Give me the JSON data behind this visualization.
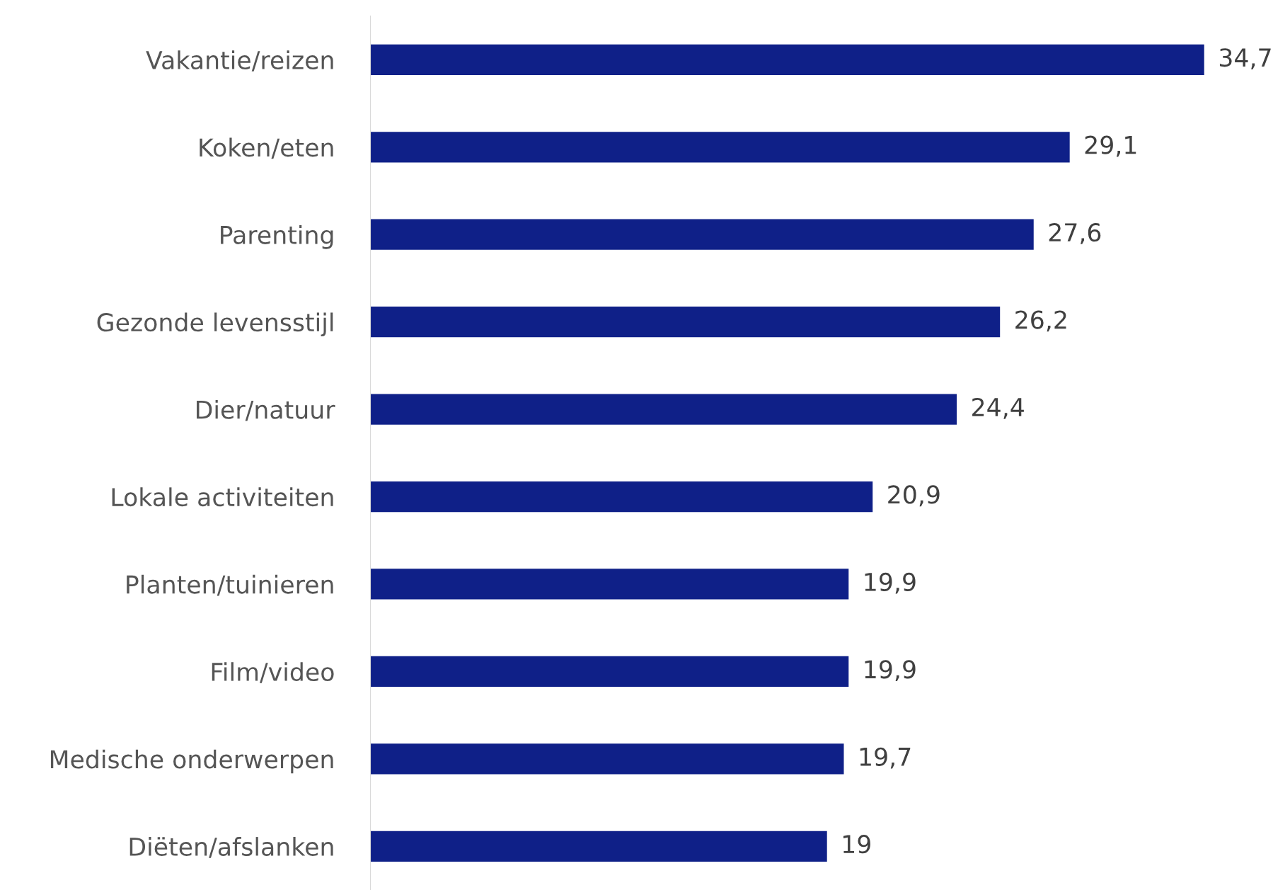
{
  "chart_data": {
    "type": "bar",
    "orientation": "horizontal",
    "categories": [
      "Vakantie/reizen",
      "Koken/eten",
      "Parenting",
      "Gezonde levensstijl",
      "Dier/natuur",
      "Lokale activiteiten",
      "Planten/tuinieren",
      "Film/video",
      "Medische onderwerpen",
      "Diëten/afslanken"
    ],
    "values": [
      34.7,
      29.1,
      27.6,
      26.2,
      24.4,
      20.9,
      19.9,
      19.9,
      19.7,
      19
    ],
    "value_labels": [
      "34,7",
      "29,1",
      "27,6",
      "26,2",
      "24,4",
      "20,9",
      "19,9",
      "19,9",
      "19,7",
      "19"
    ],
    "color": "#0f2088",
    "grid": false,
    "legend": false
  }
}
